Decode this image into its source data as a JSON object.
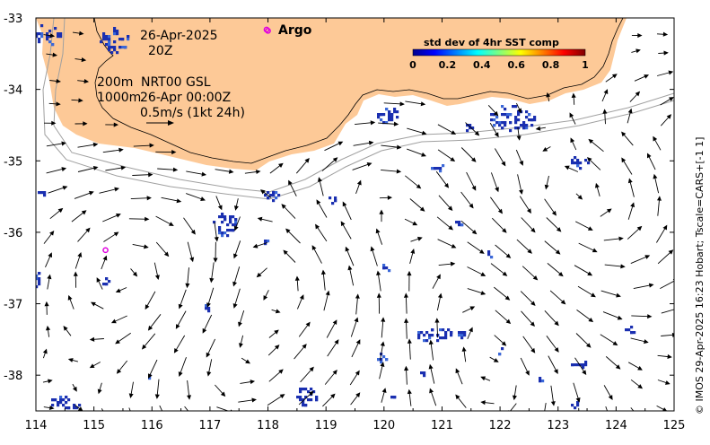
{
  "map": {
    "annotations": {
      "date": "26-Apr-2025",
      "hour": "20Z",
      "depth_top": "200m",
      "depth_bottom": "1000m",
      "product": "NRT00 GSL",
      "time": "26-Apr 00:00Z",
      "scale": "0.5m/s (1kt 24h)"
    },
    "legend": {
      "argo_label": "Argo",
      "argo_color": "#e000e0"
    },
    "colorbar": {
      "title": "std dev of 4hr SST comp",
      "ticks": [
        "0",
        "0.2",
        "0.4",
        "0.6",
        "0.8",
        "1"
      ]
    },
    "credit": "© IMOS 29-Apr-2025 16:23 Hobart; Tscale=CARS+[-1 1]",
    "axes": {
      "x_ticks": [
        "114",
        "115",
        "116",
        "117",
        "118",
        "119",
        "120",
        "121",
        "122",
        "123",
        "124",
        "125"
      ],
      "y_ticks": [
        "-33",
        "-34",
        "-35",
        "-36",
        "-37",
        "-38"
      ],
      "lon_range": [
        114,
        125
      ],
      "lat_range": [
        -38.5,
        -33
      ]
    },
    "argo_floats": [
      {
        "lon": 118.0,
        "lat": -33.18
      },
      {
        "lon": 115.2,
        "lat": -36.25
      }
    ],
    "colors": {
      "land": "#fdc997",
      "sst_patch": "#1a2fb0",
      "sst_patch_light": "#3a68d8",
      "arrow": "#000000",
      "bathy": "#a0a0a0"
    }
  }
}
